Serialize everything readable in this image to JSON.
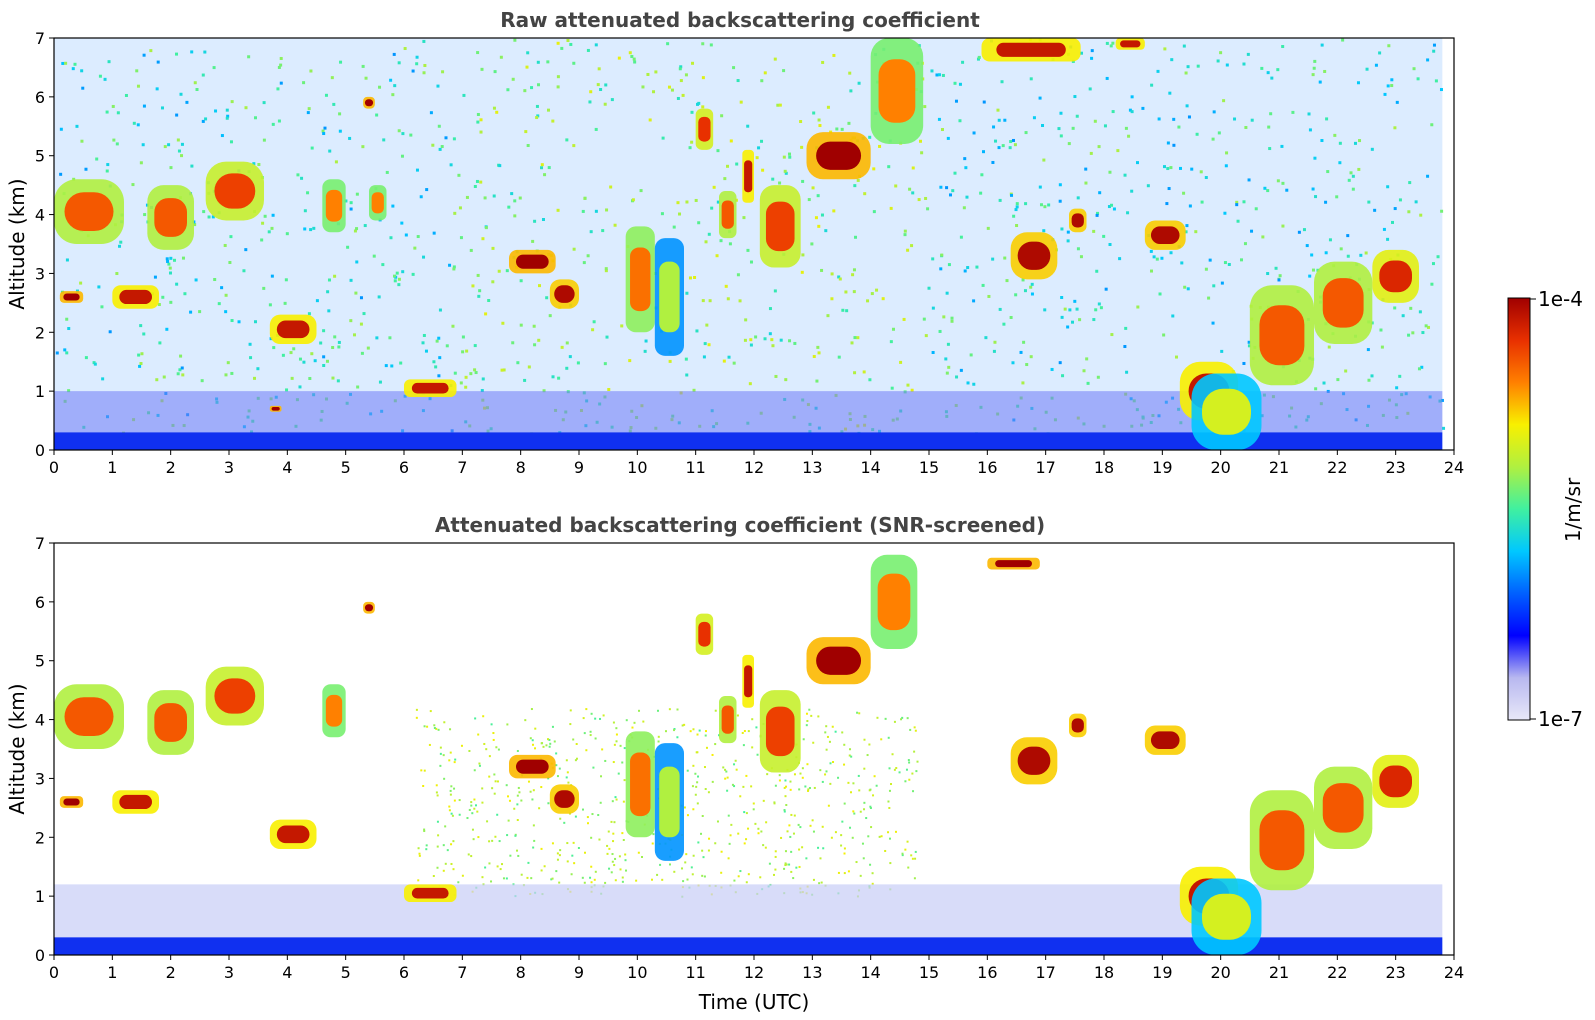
{
  "figure": {
    "x_axis_label": "Time (UTC)",
    "colorbar": {
      "label": "1/m/sr",
      "max_label": "1e-4",
      "min_label": "1e-7",
      "colormap": [
        "#e8e8f8",
        "#b8b8f0",
        "#0000ff",
        "#0060ff",
        "#00c8ff",
        "#40f0a0",
        "#b0f040",
        "#f8f000",
        "#ff8000",
        "#e83000",
        "#a00000"
      ]
    }
  },
  "chart_data": [
    {
      "type": "heatmap",
      "title": "Raw attenuated backscattering coefficient",
      "xlabel": "",
      "ylabel": "Altitude (km)",
      "xlim": [
        0,
        24
      ],
      "ylim": [
        0,
        7
      ],
      "xticks": [
        0,
        1,
        2,
        3,
        4,
        5,
        6,
        7,
        8,
        9,
        10,
        11,
        12,
        13,
        14,
        15,
        16,
        17,
        18,
        19,
        20,
        21,
        22,
        23,
        24
      ],
      "yticks": [
        0,
        1,
        2,
        3,
        4,
        5,
        6,
        7
      ],
      "data_end_time": 23.8,
      "surface_layer_top_km": 0.3,
      "features": [
        {
          "t0": 0.0,
          "t1": 1.2,
          "h0": 3.5,
          "h1": 4.6,
          "level": 0.85
        },
        {
          "t0": 1.6,
          "t1": 2.4,
          "h0": 3.4,
          "h1": 4.5,
          "level": 0.85
        },
        {
          "t0": 2.6,
          "t1": 3.6,
          "h0": 3.9,
          "h1": 4.9,
          "level": 0.88
        },
        {
          "t0": 4.6,
          "t1": 5.0,
          "h0": 3.7,
          "h1": 4.6,
          "level": 0.8
        },
        {
          "t0": 5.4,
          "t1": 5.7,
          "h0": 3.9,
          "h1": 4.5,
          "level": 0.8
        },
        {
          "t0": 0.1,
          "t1": 0.5,
          "h0": 2.5,
          "h1": 2.7,
          "level": 1.0
        },
        {
          "t0": 1.0,
          "t1": 1.8,
          "h0": 2.4,
          "h1": 2.8,
          "level": 0.95
        },
        {
          "t0": 3.7,
          "t1": 4.5,
          "h0": 1.8,
          "h1": 2.3,
          "level": 0.95
        },
        {
          "t0": 6.0,
          "t1": 6.9,
          "h0": 0.9,
          "h1": 1.2,
          "level": 0.95
        },
        {
          "t0": 3.7,
          "t1": 3.9,
          "h0": 0.65,
          "h1": 0.75,
          "level": 1.0
        },
        {
          "t0": 5.3,
          "t1": 5.5,
          "h0": 5.8,
          "h1": 6.0,
          "level": 1.0
        },
        {
          "t0": 7.8,
          "t1": 8.6,
          "h0": 3.0,
          "h1": 3.4,
          "level": 1.0
        },
        {
          "t0": 8.5,
          "t1": 9.0,
          "h0": 2.4,
          "h1": 2.9,
          "level": 0.98
        },
        {
          "t0": 9.8,
          "t1": 10.3,
          "h0": 2.0,
          "h1": 3.8,
          "level": 0.82
        },
        {
          "t0": 10.3,
          "t1": 10.8,
          "h0": 1.6,
          "h1": 3.6,
          "level": 0.6
        },
        {
          "t0": 11.0,
          "t1": 11.3,
          "h0": 5.1,
          "h1": 5.8,
          "level": 0.9
        },
        {
          "t0": 11.4,
          "t1": 11.7,
          "h0": 3.6,
          "h1": 4.4,
          "level": 0.85
        },
        {
          "t0": 11.8,
          "t1": 12.0,
          "h0": 4.2,
          "h1": 5.1,
          "level": 0.95
        },
        {
          "t0": 12.1,
          "t1": 12.8,
          "h0": 3.1,
          "h1": 4.5,
          "level": 0.88
        },
        {
          "t0": 12.9,
          "t1": 14.0,
          "h0": 4.6,
          "h1": 5.4,
          "level": 1.0
        },
        {
          "t0": 14.0,
          "t1": 14.9,
          "h0": 5.2,
          "h1": 7.0,
          "level": 0.8
        },
        {
          "t0": 15.9,
          "t1": 17.6,
          "h0": 6.6,
          "h1": 7.0,
          "level": 0.95
        },
        {
          "t0": 18.2,
          "t1": 18.7,
          "h0": 6.8,
          "h1": 7.0,
          "level": 0.95
        },
        {
          "t0": 16.4,
          "t1": 17.2,
          "h0": 2.9,
          "h1": 3.7,
          "level": 0.98
        },
        {
          "t0": 17.4,
          "t1": 17.7,
          "h0": 3.7,
          "h1": 4.1,
          "level": 0.98
        },
        {
          "t0": 18.7,
          "t1": 19.4,
          "h0": 3.4,
          "h1": 3.9,
          "level": 0.98
        },
        {
          "t0": 19.3,
          "t1": 20.3,
          "h0": 0.5,
          "h1": 1.5,
          "level": 0.95
        },
        {
          "t0": 19.5,
          "t1": 20.7,
          "h0": 0.0,
          "h1": 1.3,
          "level": 0.65
        },
        {
          "t0": 20.5,
          "t1": 21.6,
          "h0": 1.1,
          "h1": 2.8,
          "level": 0.85
        },
        {
          "t0": 21.6,
          "t1": 22.6,
          "h0": 1.8,
          "h1": 3.2,
          "level": 0.85
        },
        {
          "t0": 22.6,
          "t1": 23.4,
          "h0": 2.5,
          "h1": 3.4,
          "level": 0.92
        }
      ]
    },
    {
      "type": "heatmap",
      "title": "Attenuated backscattering coefficient (SNR-screened)",
      "xlabel": "Time (UTC)",
      "ylabel": "Altitude (km)",
      "xlim": [
        0,
        24
      ],
      "ylim": [
        0,
        7
      ],
      "xticks": [
        0,
        1,
        2,
        3,
        4,
        5,
        6,
        7,
        8,
        9,
        10,
        11,
        12,
        13,
        14,
        15,
        16,
        17,
        18,
        19,
        20,
        21,
        22,
        23,
        24
      ],
      "yticks": [
        0,
        1,
        2,
        3,
        4,
        5,
        6,
        7
      ],
      "data_end_time": 23.8,
      "surface_layer_top_km": 0.3,
      "features": [
        {
          "t0": 0.0,
          "t1": 1.2,
          "h0": 3.5,
          "h1": 4.6,
          "level": 0.85
        },
        {
          "t0": 1.6,
          "t1": 2.4,
          "h0": 3.4,
          "h1": 4.5,
          "level": 0.85
        },
        {
          "t0": 2.6,
          "t1": 3.6,
          "h0": 3.9,
          "h1": 4.9,
          "level": 0.88
        },
        {
          "t0": 4.6,
          "t1": 5.0,
          "h0": 3.7,
          "h1": 4.6,
          "level": 0.8
        },
        {
          "t0": 0.1,
          "t1": 0.5,
          "h0": 2.5,
          "h1": 2.7,
          "level": 1.0
        },
        {
          "t0": 1.0,
          "t1": 1.8,
          "h0": 2.4,
          "h1": 2.8,
          "level": 0.95
        },
        {
          "t0": 3.7,
          "t1": 4.5,
          "h0": 1.8,
          "h1": 2.3,
          "level": 0.95
        },
        {
          "t0": 6.0,
          "t1": 6.9,
          "h0": 0.9,
          "h1": 1.2,
          "level": 0.95
        },
        {
          "t0": 5.3,
          "t1": 5.5,
          "h0": 5.8,
          "h1": 6.0,
          "level": 1.0
        },
        {
          "t0": 7.8,
          "t1": 8.6,
          "h0": 3.0,
          "h1": 3.4,
          "level": 1.0
        },
        {
          "t0": 8.5,
          "t1": 9.0,
          "h0": 2.4,
          "h1": 2.9,
          "level": 0.98
        },
        {
          "t0": 9.8,
          "t1": 10.3,
          "h0": 2.0,
          "h1": 3.8,
          "level": 0.82
        },
        {
          "t0": 10.3,
          "t1": 10.8,
          "h0": 1.6,
          "h1": 3.6,
          "level": 0.6
        },
        {
          "t0": 11.0,
          "t1": 11.3,
          "h0": 5.1,
          "h1": 5.8,
          "level": 0.9
        },
        {
          "t0": 11.4,
          "t1": 11.7,
          "h0": 3.6,
          "h1": 4.4,
          "level": 0.85
        },
        {
          "t0": 11.8,
          "t1": 12.0,
          "h0": 4.2,
          "h1": 5.1,
          "level": 0.95
        },
        {
          "t0": 12.1,
          "t1": 12.8,
          "h0": 3.1,
          "h1": 4.5,
          "level": 0.88
        },
        {
          "t0": 12.9,
          "t1": 14.0,
          "h0": 4.6,
          "h1": 5.4,
          "level": 1.0
        },
        {
          "t0": 14.0,
          "t1": 14.8,
          "h0": 5.2,
          "h1": 6.8,
          "level": 0.8
        },
        {
          "t0": 16.0,
          "t1": 16.9,
          "h0": 6.55,
          "h1": 6.75,
          "level": 1.0
        },
        {
          "t0": 16.4,
          "t1": 17.2,
          "h0": 2.9,
          "h1": 3.7,
          "level": 0.98
        },
        {
          "t0": 17.4,
          "t1": 17.7,
          "h0": 3.7,
          "h1": 4.1,
          "level": 0.98
        },
        {
          "t0": 18.7,
          "t1": 19.4,
          "h0": 3.4,
          "h1": 3.9,
          "level": 0.98
        },
        {
          "t0": 19.3,
          "t1": 20.3,
          "h0": 0.5,
          "h1": 1.5,
          "level": 0.95
        },
        {
          "t0": 19.5,
          "t1": 20.7,
          "h0": 0.0,
          "h1": 1.3,
          "level": 0.65
        },
        {
          "t0": 20.5,
          "t1": 21.6,
          "h0": 1.1,
          "h1": 2.8,
          "level": 0.85
        },
        {
          "t0": 21.6,
          "t1": 22.6,
          "h0": 1.8,
          "h1": 3.2,
          "level": 0.85
        },
        {
          "t0": 22.6,
          "t1": 23.4,
          "h0": 2.5,
          "h1": 3.4,
          "level": 0.92
        }
      ]
    }
  ]
}
